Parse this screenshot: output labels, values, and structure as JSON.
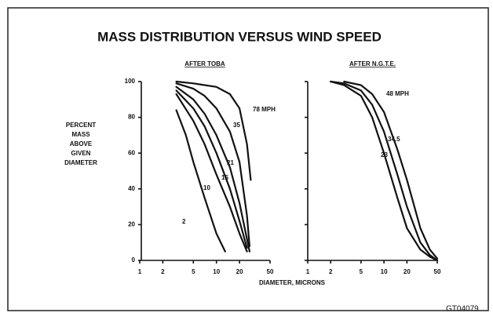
{
  "title": "MASS DISTRIBUTION VERSUS WIND SPEED",
  "xlabel": "DIAMETER, MICRONS",
  "ylabel": [
    "PERCENT",
    "MASS",
    "ABOVE",
    "GIVEN",
    "DIAMETER"
  ],
  "code": "GT04079",
  "chart_data": [
    {
      "type": "line",
      "title": "AFTER TOBA",
      "log_x": true,
      "show_ytick_labels": true,
      "xlim": [
        1,
        50
      ],
      "xticks": [
        1,
        2,
        5,
        10,
        20,
        50
      ],
      "ylim": [
        0,
        100
      ],
      "yticks": [
        0,
        20,
        40,
        60,
        80,
        100
      ],
      "series": [
        {
          "name": "2",
          "color": "#111111",
          "x": [
            3,
            4,
            5,
            7,
            10,
            13
          ],
          "values": [
            84,
            70,
            55,
            35,
            15,
            5
          ]
        },
        {
          "name": "10",
          "color": "#111111",
          "x": [
            3,
            5,
            7,
            10,
            15,
            20,
            25
          ],
          "values": [
            93,
            78,
            65,
            48,
            30,
            15,
            5
          ]
        },
        {
          "name": "15",
          "color": "#111111",
          "x": [
            3,
            5,
            7,
            10,
            15,
            20,
            25
          ],
          "values": [
            95,
            85,
            75,
            60,
            40,
            22,
            7
          ]
        },
        {
          "name": "21",
          "color": "#111111",
          "x": [
            3,
            5,
            7,
            10,
            15,
            20,
            27
          ],
          "values": [
            97,
            90,
            82,
            70,
            52,
            32,
            5
          ]
        },
        {
          "name": "35",
          "color": "#111111",
          "x": [
            3,
            5,
            7,
            10,
            15,
            20,
            25,
            27
          ],
          "values": [
            99,
            96,
            92,
            85,
            72,
            55,
            25,
            8
          ]
        },
        {
          "name": "78 MPH",
          "color": "#111111",
          "x": [
            3,
            5,
            10,
            15,
            20,
            25,
            28
          ],
          "values": [
            100,
            99,
            97,
            93,
            85,
            65,
            45
          ]
        }
      ]
    },
    {
      "type": "line",
      "title": "AFTER N.G.T.E.",
      "log_x": true,
      "show_ytick_labels": false,
      "xlim": [
        1,
        50
      ],
      "xticks": [
        1,
        2,
        5,
        10,
        20,
        50
      ],
      "ylim": [
        0,
        100
      ],
      "yticks": [
        0,
        20,
        40,
        60,
        80,
        100
      ],
      "series": [
        {
          "name": "23",
          "color": "#111111",
          "x": [
            2,
            3,
            5,
            7,
            10,
            15,
            20,
            30,
            40,
            50
          ],
          "values": [
            100,
            98,
            92,
            80,
            60,
            35,
            18,
            6,
            2,
            0
          ]
        },
        {
          "name": "34.5",
          "color": "#111111",
          "x": [
            2,
            3,
            5,
            7,
            10,
            15,
            20,
            30,
            40,
            50
          ],
          "values": [
            100,
            99,
            95,
            87,
            72,
            48,
            30,
            10,
            3,
            0
          ]
        },
        {
          "name": "48 MPH",
          "color": "#111111",
          "x": [
            3,
            5,
            7,
            10,
            15,
            20,
            30,
            40,
            50
          ],
          "values": [
            100,
            98,
            93,
            83,
            62,
            45,
            18,
            6,
            1
          ]
        }
      ]
    }
  ]
}
